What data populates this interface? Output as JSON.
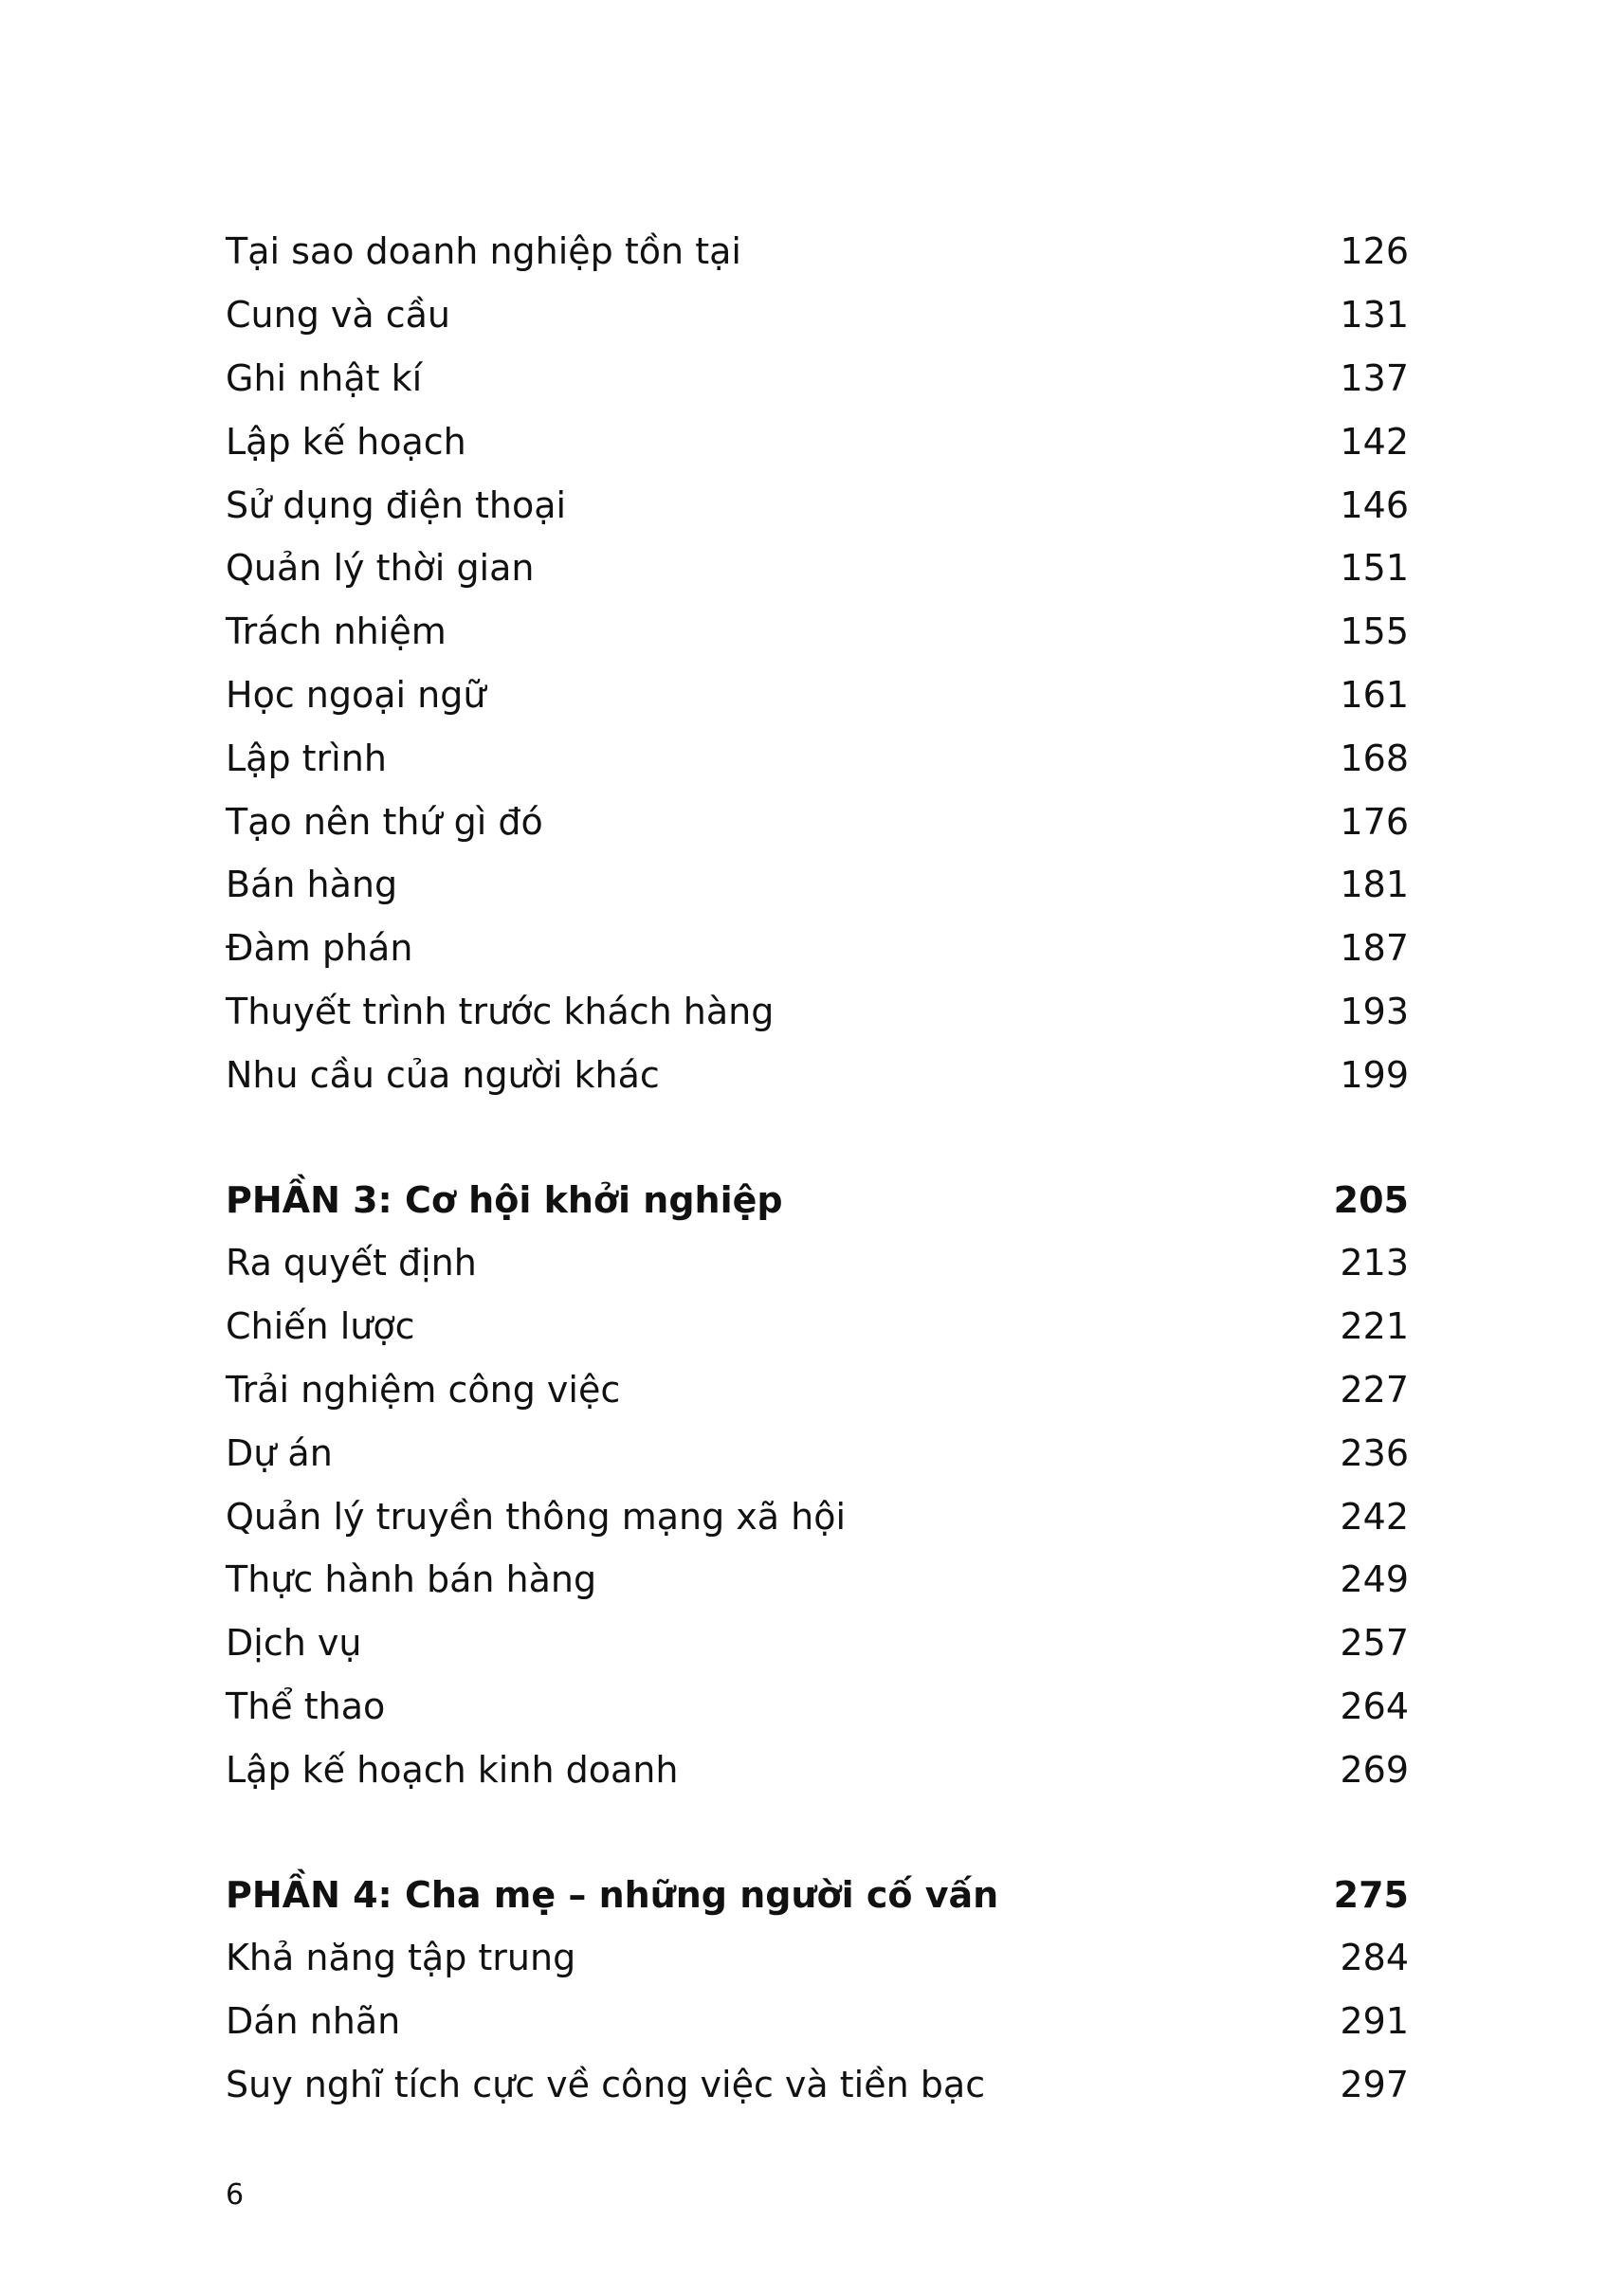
{
  "entries_part2": [
    {
      "title": "Tại sao doanh nghiệp tồn tại",
      "page": "126"
    },
    {
      "title": "Cung và cầu",
      "page": "131"
    },
    {
      "title": "Ghi nhật kí",
      "page": "137"
    },
    {
      "title": "Lập kế hoạch",
      "page": "142"
    },
    {
      "title": "Sử dụng điện thoại",
      "page": "146"
    },
    {
      "title": "Quản lý thời gian",
      "page": "151"
    },
    {
      "title": "Trách nhiệm",
      "page": "155"
    },
    {
      "title": "Học ngoại ngữ",
      "page": "161"
    },
    {
      "title": "Lập trình",
      "page": "168"
    },
    {
      "title": "Tạo nên thứ gì đó",
      "page": "176"
    },
    {
      "title": "Bán hàng",
      "page": "181"
    },
    {
      "title": "Đàm phán",
      "page": "187"
    },
    {
      "title": "Thuyết trình trước khách hàng",
      "page": "193"
    },
    {
      "title": "Nhu cầu của người khác",
      "page": "199"
    }
  ],
  "part3": {
    "title": "PHẦN 3: Cơ hội khởi nghiệp",
    "page": "205",
    "entries": [
      {
        "title": "Ra quyết định",
        "page": "213"
      },
      {
        "title": "Chiến lược",
        "page": "221"
      },
      {
        "title": "Trải nghiệm công việc",
        "page": "227"
      },
      {
        "title": "Dự án",
        "page": "236"
      },
      {
        "title": "Quản lý truyền thông mạng xã hội",
        "page": "242"
      },
      {
        "title": "Thực hành bán hàng",
        "page": "249"
      },
      {
        "title": "Dịch vụ",
        "page": "257"
      },
      {
        "title": "Thể thao",
        "page": "264"
      },
      {
        "title": "Lập kế hoạch kinh doanh",
        "page": "269"
      }
    ]
  },
  "part4": {
    "title": "PHẦN 4: Cha mẹ – những người cố vấn",
    "page": "275",
    "entries": [
      {
        "title": "Khả năng tập trung",
        "page": "284"
      },
      {
        "title": "Dán nhãn",
        "page": "291"
      },
      {
        "title": "Suy nghĩ tích cực về công việc và tiền bạc",
        "page": "297"
      }
    ]
  },
  "page_number": "6"
}
